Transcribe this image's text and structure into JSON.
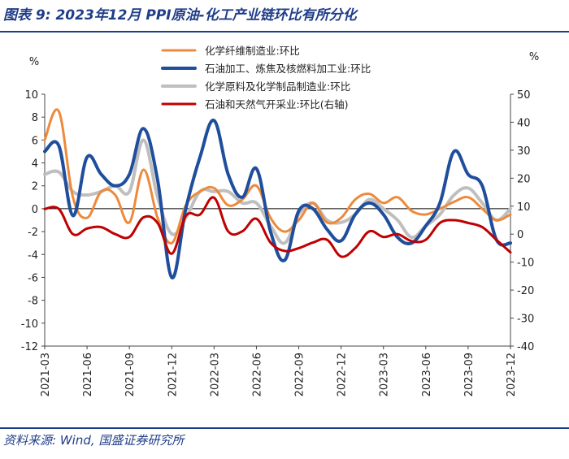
{
  "figure": {
    "title": "图表 9:  2023年12月 PPI原油-化工产业链环比有所分化",
    "source": "资料来源:  Wind,  国盛证券研究所"
  },
  "chart_data": {
    "type": "line",
    "title": "2023年12月 PPI原油-化工产业链环比有所分化",
    "ylabel_left": "%",
    "ylabel_right": "%",
    "ylim_left": [
      -12,
      10
    ],
    "ylim_right": [
      -40,
      50
    ],
    "yticks_left": [
      10,
      8,
      6,
      4,
      2,
      0,
      -2,
      -4,
      -6,
      -8,
      -10,
      -12
    ],
    "yticks_right": [
      50,
      40,
      30,
      20,
      10,
      0,
      -10,
      -20,
      -30,
      -40
    ],
    "x": [
      "2021-03",
      "2021-04",
      "2021-05",
      "2021-06",
      "2021-07",
      "2021-08",
      "2021-09",
      "2021-10",
      "2021-11",
      "2021-12",
      "2022-01",
      "2022-02",
      "2022-03",
      "2022-04",
      "2022-05",
      "2022-06",
      "2022-07",
      "2022-08",
      "2022-09",
      "2022-10",
      "2022-11",
      "2022-12",
      "2023-01",
      "2023-02",
      "2023-03",
      "2023-04",
      "2023-05",
      "2023-06",
      "2023-07",
      "2023-08",
      "2023-09",
      "2023-10",
      "2023-11",
      "2023-12"
    ],
    "xtick_labels": [
      "2021-03",
      "2021-06",
      "2021-09",
      "2021-12",
      "2022-03",
      "2022-06",
      "2022-09",
      "2022-12",
      "2023-03",
      "2023-06",
      "2023-09",
      "2023-12"
    ],
    "legend_position": "top",
    "series": [
      {
        "name": "化学纤维制造业:环比",
        "color": "#ed8a3c",
        "axis": "left",
        "width": 3,
        "values": [
          6.0,
          8.5,
          1.0,
          -0.8,
          1.5,
          1.2,
          -1.2,
          3.4,
          -0.8,
          -3.0,
          0.3,
          1.5,
          1.8,
          0.3,
          0.8,
          2.0,
          -0.8,
          -2.0,
          -1.0,
          0.5,
          -1.2,
          -0.8,
          0.8,
          1.3,
          0.5,
          1.0,
          -0.2,
          -0.5,
          0.0,
          0.6,
          1.0,
          0.0,
          -1.0,
          -0.5
        ]
      },
      {
        "name": "石油加工、炼焦及核燃料加工业:环比",
        "color": "#1f4e9c",
        "axis": "left",
        "width": 4,
        "values": [
          5.0,
          5.5,
          -0.6,
          4.5,
          3.0,
          2.0,
          3.0,
          7.0,
          2.5,
          -6.0,
          0.0,
          4.5,
          7.7,
          3.0,
          1.0,
          3.5,
          -2.0,
          -4.5,
          -0.2,
          0.0,
          -1.8,
          -2.8,
          -0.5,
          0.5,
          -0.5,
          -2.5,
          -3.0,
          -1.5,
          0.5,
          5.0,
          3.0,
          2.0,
          -2.7,
          -3.0
        ]
      },
      {
        "name": "化学原料及化学制品制造业:环比",
        "color": "#bfbfbf",
        "axis": "left",
        "width": 4,
        "values": [
          3.0,
          3.2,
          1.5,
          1.2,
          1.5,
          2.0,
          1.5,
          6.0,
          1.0,
          -2.2,
          -0.8,
          1.5,
          1.5,
          1.5,
          0.5,
          0.5,
          -1.5,
          -3.0,
          -0.5,
          0.5,
          -1.0,
          -1.2,
          -0.5,
          0.8,
          0.0,
          -1.0,
          -2.5,
          -1.5,
          -0.5,
          1.2,
          1.8,
          0.5,
          -1.0,
          0.0
        ]
      },
      {
        "name": "石油和天然气开采业:环比(右轴)",
        "color": "#c00000",
        "axis": "right",
        "width": 3,
        "values": [
          9.0,
          9.0,
          0.0,
          2.0,
          2.5,
          0.0,
          -1.0,
          6.0,
          4.0,
          -7.0,
          6.5,
          7.0,
          13.0,
          1.0,
          1.0,
          5.5,
          -3.0,
          -6.0,
          -5.0,
          -3.0,
          -2.0,
          -8.0,
          -5.0,
          1.0,
          -1.0,
          0.0,
          -2.5,
          -2.0,
          4.0,
          5.0,
          4.0,
          2.5,
          -2.0,
          -6.5
        ]
      }
    ]
  }
}
